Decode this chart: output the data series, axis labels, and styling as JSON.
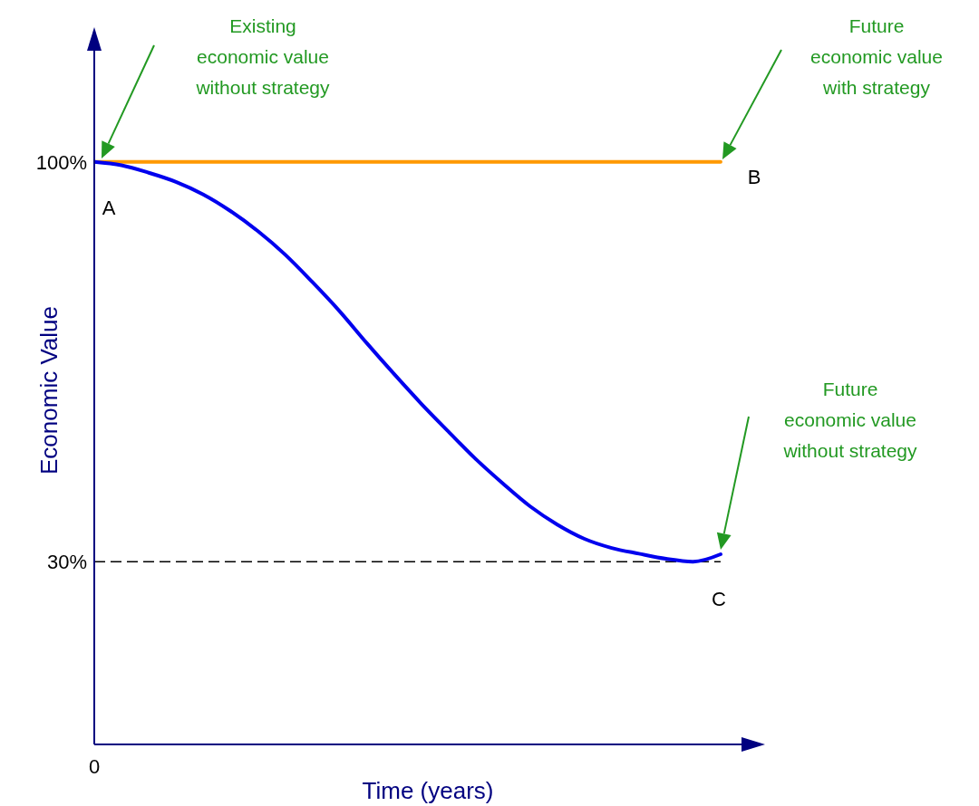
{
  "chart_data": {
    "type": "line",
    "xlabel": "Time (years)",
    "ylabel": "Economic Value",
    "categories": [
      "0",
      null,
      null,
      null,
      null,
      null,
      null,
      null,
      null,
      null,
      null,
      null,
      null,
      null,
      null,
      null,
      null,
      null,
      null,
      null,
      null,
      null,
      null,
      null
    ],
    "series": [
      {
        "color": "#ff9900",
        "values": [
          100,
          100,
          100,
          100,
          100,
          100,
          100,
          100,
          100,
          100,
          100,
          100,
          100,
          100,
          100,
          100,
          100,
          100,
          100,
          100,
          100,
          100,
          100,
          100
        ]
      },
      {
        "color": "#0000ee",
        "values": [
          100,
          99.4,
          98.1,
          96.5,
          94.3,
          91.4,
          87.9,
          83.8,
          79,
          73.9,
          68.3,
          62.9,
          57.7,
          52.8,
          48,
          43.7,
          39.7,
          36.5,
          34,
          32.4,
          31.4,
          30.5,
          30,
          31.3
        ]
      }
    ],
    "ylim": [
      -2,
      122
    ],
    "yticks": [
      {
        "value": 100,
        "label": "100%"
      },
      {
        "value": 30,
        "label": "30%"
      }
    ],
    "ref_lines": [
      {
        "axis": "y",
        "value": 30,
        "color": "#000000",
        "line_style": "dashed"
      }
    ],
    "grid": false,
    "legend": false,
    "marker": "none",
    "line_style": "solid",
    "annotations": [
      "Existing economic value without strategy",
      "Future economic value with strategy",
      "Future economic value without strategy",
      "A",
      "B",
      "C"
    ]
  }
}
